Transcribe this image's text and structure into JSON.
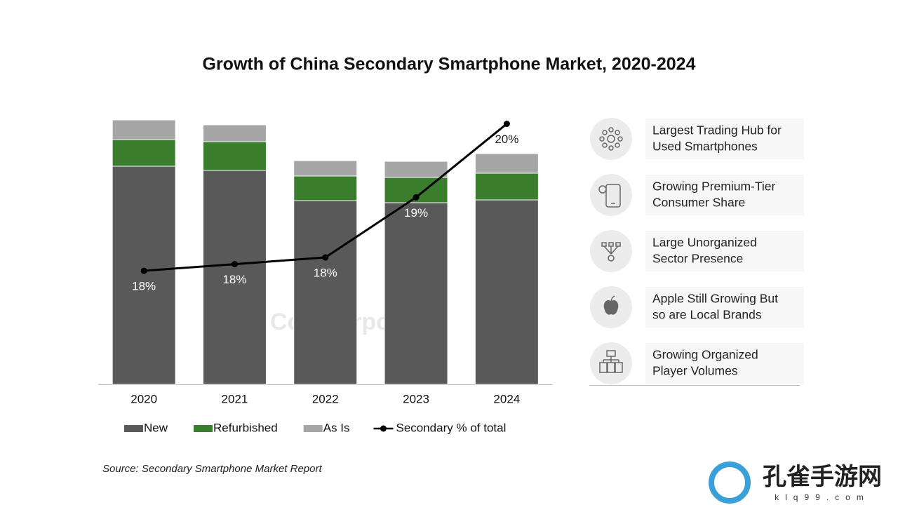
{
  "chart_data": {
    "type": "bar_line",
    "title": "Growth of China Secondary Smartphone Market, 2020-2024",
    "categories": [
      "2020",
      "2021",
      "2022",
      "2023",
      "2024"
    ],
    "series": [
      {
        "name": "New",
        "color": "#595959",
        "values": [
          311,
          305,
          262,
          259,
          263
        ]
      },
      {
        "name": "Refurbished",
        "color": "#3a7d2c",
        "values": [
          38,
          41,
          35,
          36,
          38
        ]
      },
      {
        "name": "As Is",
        "color": "#a6a6a6",
        "values": [
          28,
          24,
          22,
          23,
          28
        ]
      },
      {
        "name": "Secondary % of total",
        "color": "#000000",
        "axis": "y2",
        "values": [
          18.2,
          18.3,
          18.4,
          19.3,
          20.4
        ],
        "value_labels": [
          "18%",
          "18%",
          "18%",
          "19%",
          "20%"
        ]
      }
    ],
    "ylim": [
      0,
      400
    ],
    "y2lim": [
      16.5,
      20.7
    ],
    "source": "Source: Secondary Smartphone Market Report",
    "watermark": "Counterpoint"
  },
  "highlights": [
    {
      "lines": [
        "Largest Trading Hub for",
        "Used Smartphones"
      ]
    },
    {
      "lines": [
        "Growing Premium-Tier",
        "Consumer Share"
      ]
    },
    {
      "lines": [
        "Large Unorganized",
        "Sector Presence"
      ]
    },
    {
      "lines": [
        "Apple Still Growing But",
        "so are Local Brands"
      ]
    },
    {
      "lines": [
        "Growing Organized",
        "Player Volumes"
      ]
    }
  ],
  "site_logo": {
    "name": "孔雀手游网",
    "url": "klq99.com"
  }
}
